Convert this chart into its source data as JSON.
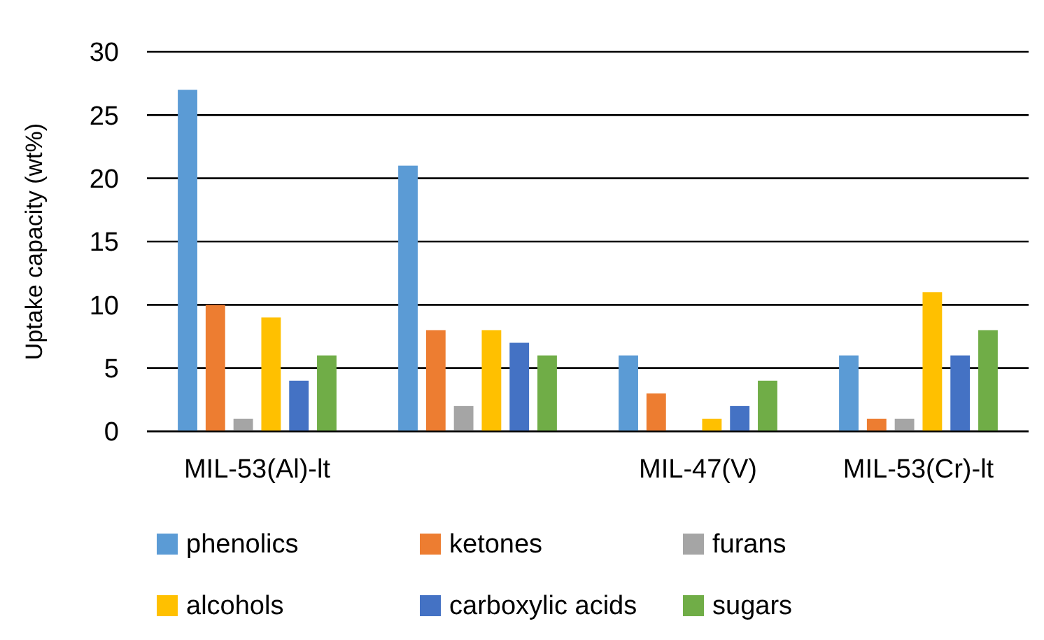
{
  "chart_data": {
    "type": "bar",
    "ylabel": "Uptake capacity (wt%)",
    "categories": [
      "MIL-53(Al)-lt",
      null,
      "MIL-47(V)",
      "MIL-53(Cr)-lt"
    ],
    "series": [
      {
        "name": "phenolics",
        "color": "#5b9bd5",
        "values": [
          27,
          21,
          6,
          6
        ]
      },
      {
        "name": "ketones",
        "color": "#ed7d31",
        "values": [
          10,
          8,
          3,
          1
        ]
      },
      {
        "name": "furans",
        "color": "#a5a5a5",
        "values": [
          1,
          2,
          0,
          1
        ]
      },
      {
        "name": "alcohols",
        "color": "#ffc000",
        "values": [
          9,
          8,
          1,
          11
        ]
      },
      {
        "name": "carboxylic acids",
        "color": "#4472c4",
        "values": [
          4,
          7,
          2,
          6
        ]
      },
      {
        "name": "sugars",
        "color": "#70ad47",
        "values": [
          6,
          6,
          4,
          8
        ]
      }
    ],
    "ylim": [
      0,
      30
    ],
    "yticks": [
      0,
      5,
      10,
      15,
      20,
      25,
      30
    ],
    "grid": "y",
    "legend": "bottom"
  }
}
